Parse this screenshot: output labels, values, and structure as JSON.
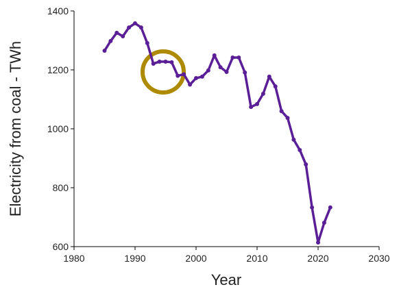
{
  "chart_data": {
    "type": "line",
    "x_label": "Year",
    "y_label": "Electricity from coal - TWh",
    "x": [
      1985,
      1986,
      1987,
      1988,
      1989,
      1990,
      1991,
      1992,
      1993,
      1994,
      1995,
      1996,
      1997,
      1998,
      1999,
      2000,
      2001,
      2002,
      2003,
      2004,
      2005,
      2006,
      2007,
      2008,
      2009,
      2010,
      2011,
      2012,
      2013,
      2014,
      2015,
      2016,
      2017,
      2018,
      2019,
      2020,
      2021,
      2022
    ],
    "series": [
      {
        "color": "#5a1e96",
        "values": [
          1265,
          1298,
          1326,
          1314,
          1344,
          1358,
          1344,
          1291,
          1221,
          1228,
          1228,
          1226,
          1180,
          1185,
          1150,
          1172,
          1177,
          1198,
          1249,
          1209,
          1193,
          1242,
          1242,
          1191,
          1074,
          1084,
          1119,
          1177,
          1144,
          1060,
          1037,
          963,
          928,
          879,
          733,
          614,
          681,
          733
        ]
      }
    ],
    "xlim": [
      1980,
      2030
    ],
    "xticks": [
      1980,
      1990,
      2000,
      2010,
      2020,
      2030
    ],
    "ylim": [
      600,
      1400
    ],
    "yticks": [
      600,
      800,
      1000,
      1200,
      1400
    ]
  }
}
